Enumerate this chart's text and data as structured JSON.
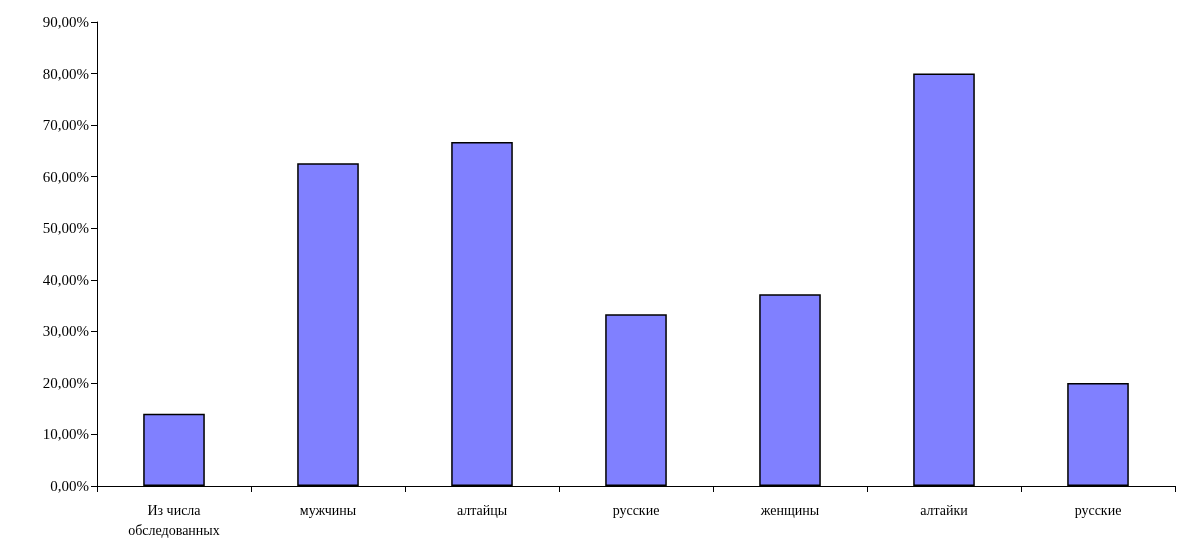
{
  "chart_data": {
    "type": "bar",
    "categories": [
      "Из числа обследованных",
      "мужчины",
      "алтайцы",
      "русские",
      "женщины",
      "алтайки",
      "русские"
    ],
    "values": [
      14,
      62.6,
      66.7,
      33.3,
      37.2,
      80,
      20
    ],
    "color": "#8080ff",
    "ylim": [
      0,
      90
    ],
    "yticks": [
      {
        "value": 0,
        "label": "0,00%"
      },
      {
        "value": 10,
        "label": "10,00%"
      },
      {
        "value": 20,
        "label": "20,00%"
      },
      {
        "value": 30,
        "label": "30,00%"
      },
      {
        "value": 40,
        "label": "40,00%"
      },
      {
        "value": 50,
        "label": "50,00%"
      },
      {
        "value": 60,
        "label": "60,00%"
      },
      {
        "value": 70,
        "label": "70,00%"
      },
      {
        "value": 80,
        "label": "80,00%"
      },
      {
        "value": 90,
        "label": "90,00%"
      }
    ],
    "grid": false
  }
}
